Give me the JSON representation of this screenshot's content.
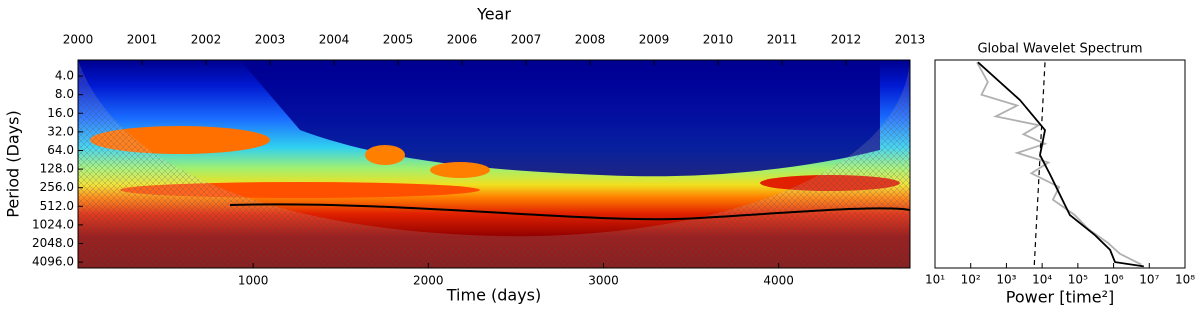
{
  "chart_data": [
    {
      "type": "heatmap",
      "x2label": "Year",
      "xlabel": "Time (days)",
      "ylabel": "Period (Days)",
      "xlim": [
        0,
        4750
      ],
      "xticks": [
        1000,
        2000,
        3000,
        4000
      ],
      "x2lim": [
        2000,
        2013
      ],
      "x2ticks": [
        2000,
        2001,
        2002,
        2003,
        2004,
        2005,
        2006,
        2007,
        2008,
        2009,
        2010,
        2011,
        2012,
        2013
      ],
      "yscale": "log",
      "ylim": [
        2.2,
        5100
      ],
      "yticks": [
        {
          "value": 4,
          "label": "4.0"
        },
        {
          "value": 8,
          "label": "8.0"
        },
        {
          "value": 16,
          "label": "16.0"
        },
        {
          "value": 32,
          "label": "32.0"
        },
        {
          "value": 64,
          "label": "64.0"
        },
        {
          "value": 128,
          "label": "128.0"
        },
        {
          "value": 256,
          "label": "256.0"
        },
        {
          "value": 512,
          "label": "512.0"
        },
        {
          "value": 1024,
          "label": "1024.0"
        },
        {
          "value": 2048,
          "label": "2048.0"
        },
        {
          "value": 4096,
          "label": "4096.0"
        }
      ]
    },
    {
      "type": "line",
      "title": "Global Wavelet Spectrum",
      "xlabel": "Power [time²]",
      "xscale": "log",
      "xlim": [
        10,
        100000000
      ],
      "xticks": [
        {
          "value": 10,
          "label": "10¹"
        },
        {
          "value": 100,
          "label": "10²"
        },
        {
          "value": 1000,
          "label": "10³"
        },
        {
          "value": 10000,
          "label": "10⁴"
        },
        {
          "value": 100000,
          "label": "10⁵"
        },
        {
          "value": 1000000,
          "label": "10⁶"
        },
        {
          "value": 10000000,
          "label": "10⁷"
        },
        {
          "value": 100000000,
          "label": "10⁸"
        }
      ],
      "yscale": "log",
      "ylim": [
        2.2,
        5100
      ],
      "series": [
        {
          "color": "#b0b0b0",
          "style": "solid",
          "period": [
            2.4,
            5,
            8,
            12,
            18,
            25,
            35,
            50,
            70,
            100,
            150,
            250,
            400,
            700,
            1200,
            2000,
            3000,
            4500
          ],
          "power": [
            150,
            300,
            200,
            2000,
            500,
            8000,
            3000,
            12000,
            2000,
            15000,
            5000,
            30000,
            20000,
            80000,
            200000,
            700000,
            1500000,
            6000000
          ]
        },
        {
          "color": "#000000",
          "style": "solid",
          "period": [
            2.4,
            9.8,
            30,
            76,
            160,
            340,
            710,
            1500,
            2600,
            4096,
            4800
          ],
          "power": [
            160,
            2400,
            12000,
            8700,
            17000,
            32000,
            60000,
            300000,
            800000,
            1100000,
            7000000
          ]
        },
        {
          "color": "#000000",
          "style": "dashed",
          "period": [
            2.4,
            4800
          ],
          "power": [
            12000,
            6000
          ]
        }
      ]
    }
  ]
}
